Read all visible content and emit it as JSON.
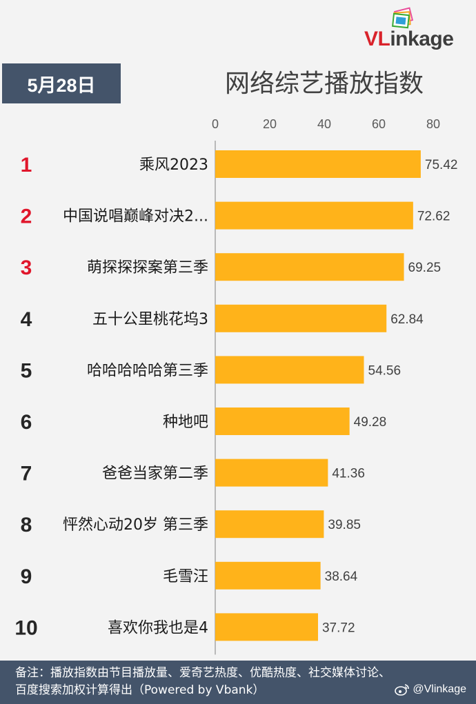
{
  "brand": {
    "logo_v": "VL",
    "logo_rest": "inkage"
  },
  "date_label": "5月28日",
  "title": "网络综艺播放指数",
  "chart_data": {
    "type": "bar",
    "orientation": "horizontal",
    "title": "网络综艺播放指数",
    "xlim": [
      0,
      80
    ],
    "x_ticks": [
      0,
      20,
      40,
      60,
      80
    ],
    "tick_labels": [
      "0",
      "20",
      "40",
      "60",
      "80"
    ],
    "ranks": [
      "1",
      "2",
      "3",
      "4",
      "5",
      "6",
      "7",
      "8",
      "9",
      "10"
    ],
    "categories": [
      "乘风2023",
      "中国说唱巅峰对决2...",
      "萌探探探案第三季",
      "五十公里桃花坞3",
      "哈哈哈哈哈第三季",
      "种地吧",
      "爸爸当家第二季",
      "怦然心动20岁 第三季",
      "毛雪汪",
      "喜欢你我也是4"
    ],
    "values": [
      75.42,
      72.62,
      69.25,
      62.84,
      54.56,
      49.28,
      41.36,
      39.85,
      38.64,
      37.72
    ],
    "value_labels": [
      "75.42",
      "72.62",
      "69.25",
      "62.84",
      "54.56",
      "49.28",
      "41.36",
      "39.85",
      "38.64",
      "37.72"
    ],
    "bar_color": "#ffb31a",
    "top_rank_color": "#e0162b",
    "rank_color": "#262626"
  },
  "footer": {
    "note": "备注：播放指数由节目播放量、爱奇艺热度、优酷热度、社交媒体讨论、百度搜索加权计算得出（Powered by Vbank）",
    "handle": "@Vlinkage"
  },
  "colors": {
    "header_bg": "#44546a",
    "page_bg": "#f3f3f3"
  }
}
